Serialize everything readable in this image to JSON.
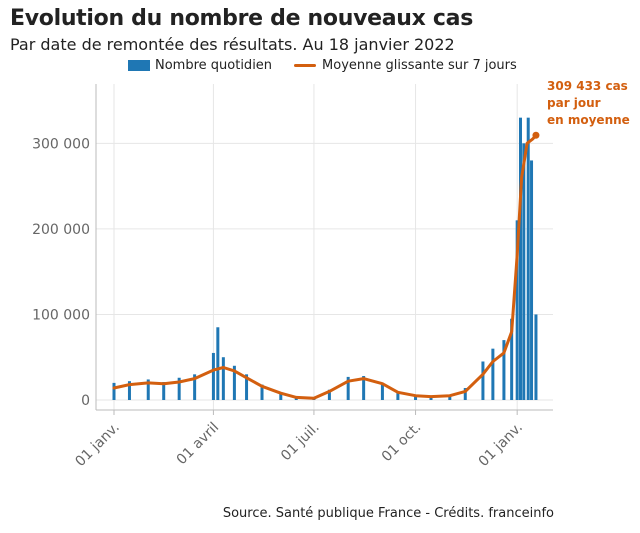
{
  "title": "Evolution du nombre de nouveaux cas",
  "subtitle": "Par date de remontée des résultats. Au 18 janvier 2022",
  "legend": {
    "bars": "Nombre quotidien",
    "line": "Moyenne glissante sur 7 jours"
  },
  "colors": {
    "bars": "#1f77b4",
    "line": "#d35f0f",
    "grid": "#e6e6e6",
    "axis": "#bbbbbb"
  },
  "annotation": [
    "309 433 cas",
    "par jour",
    "en moyenne"
  ],
  "source": "Source. Santé publique France - Crédits. franceinfo",
  "chart_data": {
    "type": "bar",
    "title": "Evolution du nombre de nouveaux cas",
    "xlabel": "",
    "ylabel": "",
    "ylim": [
      0,
      360000
    ],
    "yticks": [
      0,
      100000,
      200000,
      300000
    ],
    "ytick_labels": [
      "0",
      "100 000",
      "200 000",
      "300 000"
    ],
    "xtick_labels": [
      "01 janv.",
      "01 avril",
      "01 juil.",
      "01 oct.",
      "01 janv."
    ],
    "xtick_dates": [
      "2021-01-01",
      "2021-04-01",
      "2021-07-01",
      "2021-10-01",
      "2022-01-01"
    ],
    "x_range": [
      "2021-01-01",
      "2022-01-18"
    ],
    "grid": true,
    "legend_position": "top",
    "series": [
      {
        "name": "Moyenne glissante sur 7 jours",
        "type": "line",
        "x": [
          "2021-01-01",
          "2021-01-15",
          "2021-02-01",
          "2021-02-15",
          "2021-03-01",
          "2021-03-15",
          "2021-04-01",
          "2021-04-10",
          "2021-04-20",
          "2021-05-01",
          "2021-05-15",
          "2021-06-01",
          "2021-06-15",
          "2021-07-01",
          "2021-07-15",
          "2021-08-01",
          "2021-08-15",
          "2021-09-01",
          "2021-09-15",
          "2021-10-01",
          "2021-10-15",
          "2021-11-01",
          "2021-11-15",
          "2021-12-01",
          "2021-12-10",
          "2021-12-20",
          "2021-12-27",
          "2022-01-01",
          "2022-01-05",
          "2022-01-10",
          "2022-01-15",
          "2022-01-18"
        ],
        "values": [
          14000,
          18000,
          20000,
          19000,
          21000,
          25000,
          35000,
          38000,
          34000,
          26000,
          16000,
          8000,
          3000,
          2000,
          10000,
          22000,
          25000,
          19000,
          9000,
          5000,
          4000,
          5000,
          10000,
          30000,
          45000,
          55000,
          80000,
          170000,
          260000,
          300000,
          305000,
          309433
        ]
      },
      {
        "name": "Nombre quotidien",
        "type": "bar",
        "x": [
          "2021-01-01",
          "2021-01-15",
          "2021-02-01",
          "2021-02-15",
          "2021-03-01",
          "2021-03-15",
          "2021-04-01",
          "2021-04-05",
          "2021-04-10",
          "2021-04-20",
          "2021-05-01",
          "2021-05-15",
          "2021-06-01",
          "2021-06-15",
          "2021-07-01",
          "2021-07-15",
          "2021-08-01",
          "2021-08-15",
          "2021-09-01",
          "2021-09-15",
          "2021-10-01",
          "2021-10-15",
          "2021-11-01",
          "2021-11-15",
          "2021-12-01",
          "2021-12-10",
          "2021-12-20",
          "2021-12-27",
          "2022-01-01",
          "2022-01-04",
          "2022-01-07",
          "2022-01-11",
          "2022-01-14",
          "2022-01-18"
        ],
        "values": [
          20000,
          22000,
          24000,
          21000,
          26000,
          30000,
          55000,
          85000,
          50000,
          40000,
          30000,
          18000,
          9000,
          4000,
          2000,
          12000,
          27000,
          28000,
          20000,
          10000,
          6000,
          5000,
          6000,
          14000,
          45000,
          60000,
          70000,
          95000,
          210000,
          330000,
          300000,
          330000,
          280000,
          100000
        ]
      }
    ]
  }
}
